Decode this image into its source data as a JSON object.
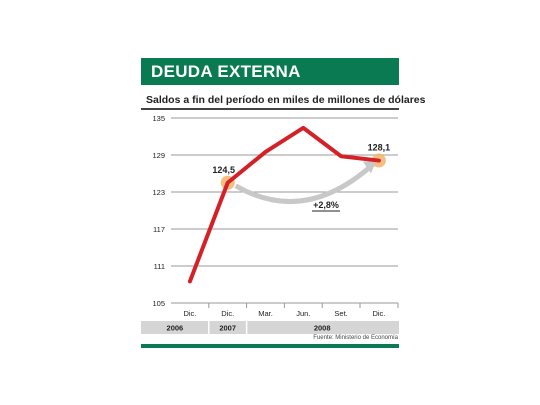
{
  "header": {
    "title": "DEUDA EXTERNA"
  },
  "subtitle": "Saldos a fin del período en miles de millones de dólares",
  "source": "Fuente: Ministerio de Economía",
  "colors": {
    "accent": "#0a7a52",
    "line": "#d42027",
    "highlight": "#f2b46a",
    "arrow": "#c8c8c8"
  },
  "chart_data": {
    "type": "line",
    "categories": [
      "Dic.",
      "Dic.",
      "Mar.",
      "Jun.",
      "Set.",
      "Dic."
    ],
    "years": [
      {
        "label": "2006",
        "span": 1
      },
      {
        "label": "2007",
        "span": 1
      },
      {
        "label": "2008",
        "span": 4
      }
    ],
    "series": [
      {
        "values": [
          108.5,
          124.5,
          129.5,
          133.4,
          128.8,
          128.1
        ]
      }
    ],
    "ylim": [
      105,
      135
    ],
    "yticks": [
      105,
      111,
      117,
      123,
      129,
      135
    ],
    "grid": true,
    "annotations": [
      {
        "label": "124,5",
        "index": 1
      },
      {
        "label": "128,1",
        "index": 5
      },
      {
        "label": "+2,8%"
      }
    ]
  }
}
